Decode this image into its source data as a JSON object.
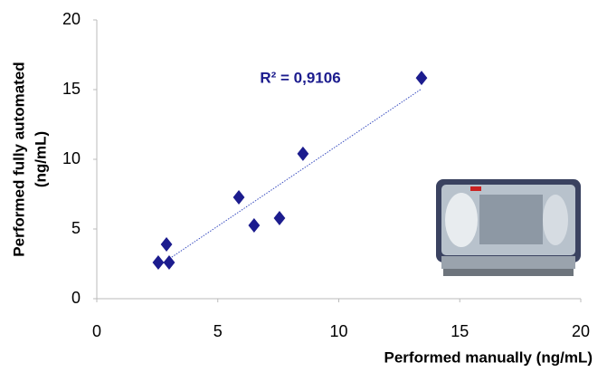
{
  "chart_data": {
    "type": "scatter",
    "x_label": "Performed manually (ng/mL)",
    "y_label": [
      "Performed fully automated",
      "(ng/mL)"
    ],
    "annotation": "R² = 0,9106",
    "series": [
      {
        "color": "#1c1c8e",
        "x": [
          2.54,
          2.88,
          2.99,
          5.87,
          6.5,
          7.55,
          8.52,
          13.42
        ],
        "values": [
          2.6,
          3.9,
          2.6,
          7.27,
          5.26,
          5.78,
          10.4,
          15.84
        ]
      }
    ],
    "trendline": true,
    "xlim": [
      0,
      20
    ],
    "xticks": [
      0,
      5,
      10,
      15,
      20
    ],
    "ylim": [
      0,
      20
    ],
    "yticks": [
      0,
      5,
      10,
      15,
      20
    ],
    "grid": false
  }
}
